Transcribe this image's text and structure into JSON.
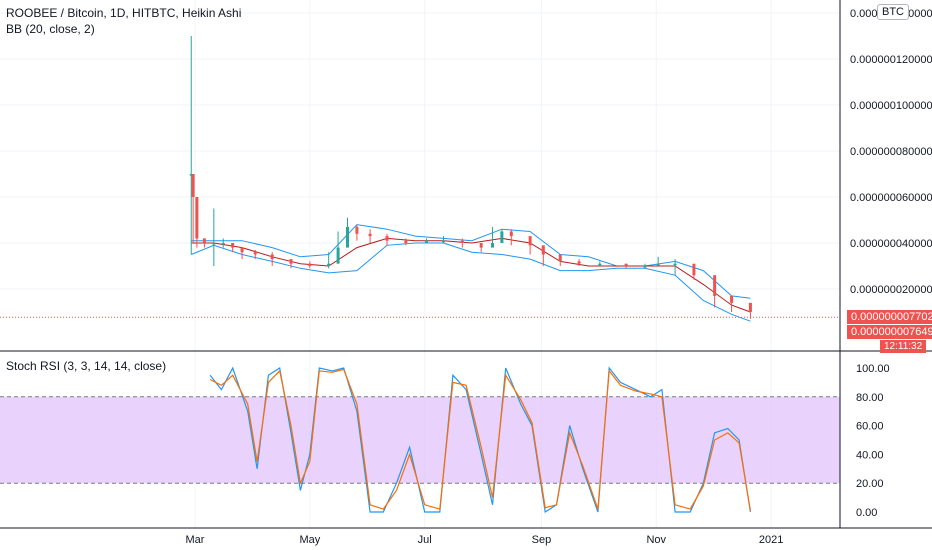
{
  "header": {
    "symbol_line": "ROOBEE / Bitcoin, 1D, HITBTC, Heikin Ashi",
    "bb_label": "BB (20, close, 2)",
    "currency_badge": "BTC",
    "stoch_label": "Stoch RSI (3, 3, 14, 14, close)"
  },
  "price_pills": {
    "last": "0.000000007702",
    "close": "0.000000007649",
    "countdown": "12:11:32"
  },
  "colors": {
    "up": "#26a69a",
    "down": "#ef5350",
    "bb_band": "#2196f3",
    "bb_basis": "#b71c1c",
    "k_line": "#2196f3",
    "d_line": "#ff6d00",
    "rsi_fill": "#e1c4fb"
  },
  "chart_data": [
    {
      "type": "candlestick",
      "title": "ROOBEE / Bitcoin, 1D, HITBTC, Heikin Ashi",
      "x_tick_labels": [
        "Mar",
        "May",
        "Jul",
        "Sep",
        "Nov",
        "2021"
      ],
      "y_tick_labels": [
        "0.000000020000",
        "0.000000040000",
        "0.000000060000",
        "0.000000080000",
        "0.000000100000",
        "0.000000120000",
        "0.000000140000"
      ],
      "ylim": [
        0.0,
        1.45e-07
      ],
      "last_price": 7.702e-09,
      "close_price": 7.649e-09,
      "series": [
        {
          "name": "BB (20, close, 2)",
          "x": [
            "Feb 27",
            "Mar 10",
            "Mar 25",
            "Apr 10",
            "Apr 25",
            "May 10",
            "May 25",
            "Jun 10",
            "Jun 25",
            "Jul 10",
            "Jul 25",
            "Aug 10",
            "Aug 25",
            "Sep 10",
            "Sep 25",
            "Oct 10",
            "Oct 25",
            "Nov 10",
            "Nov 25",
            "Dec 10",
            "Dec 20"
          ],
          "upper": [
            4.1e-08,
            4.1e-08,
            4.1e-08,
            3.8e-08,
            3.4e-08,
            3.5e-08,
            4.8e-08,
            4.6e-08,
            4.3e-08,
            4.2e-08,
            4.1e-08,
            4.6e-08,
            4.5e-08,
            3.5e-08,
            3.4e-08,
            3e-08,
            3e-08,
            3.2e-08,
            2.8e-08,
            1.7e-08,
            1.6e-08
          ],
          "basis": [
            4e-08,
            4e-08,
            3.8e-08,
            3.4e-08,
            3.1e-08,
            3e-08,
            3.8e-08,
            4.2e-08,
            4.1e-08,
            4.1e-08,
            4e-08,
            4.2e-08,
            4e-08,
            3.2e-08,
            3e-08,
            3e-08,
            3e-08,
            3e-08,
            2.2e-08,
            1.3e-08,
            1e-08
          ],
          "lower": [
            3.5e-08,
            3.9e-08,
            3.5e-08,
            3.2e-08,
            2.9e-08,
            2.7e-08,
            2.8e-08,
            3.9e-08,
            4e-08,
            4e-08,
            3.6e-08,
            3.5e-08,
            3.3e-08,
            2.8e-08,
            2.8e-08,
            2.9e-08,
            2.9e-08,
            2.6e-08,
            1.5e-08,
            9e-09,
            6e-09
          ]
        }
      ],
      "candles_sampled": {
        "x": [
          "Feb 27",
          "Feb 28",
          "Mar 1",
          "Mar 5",
          "Mar 10",
          "Mar 15",
          "Mar 20",
          "Mar 25",
          "Apr 1",
          "Apr 10",
          "Apr 20",
          "Apr 30",
          "May 10",
          "May 15",
          "May 20",
          "May 25",
          "Jun 1",
          "Jun 10",
          "Jun 20",
          "Jul 1",
          "Jul 10",
          "Jul 20",
          "Jul 30",
          "Aug 5",
          "Aug 10",
          "Aug 15",
          "Aug 25",
          "Sep 1",
          "Sep 10",
          "Sep 20",
          "Oct 1",
          "Oct 15",
          "Oct 25",
          "Nov 1",
          "Nov 10",
          "Nov 20",
          "Dec 1",
          "Dec 10",
          "Dec 20"
        ],
        "close": [
          7e-08,
          6e-08,
          4.2e-08,
          4e-08,
          4e-08,
          4e-08,
          3.8e-08,
          3.6e-08,
          3.5e-08,
          3.3e-08,
          3.1e-08,
          3e-08,
          3.1e-08,
          3.8e-08,
          4.7e-08,
          4.4e-08,
          4.3e-08,
          4.1e-08,
          4e-08,
          4.1e-08,
          4.1e-08,
          4e-08,
          3.8e-08,
          4e-08,
          4.5e-08,
          4.3e-08,
          3.9e-08,
          3.5e-08,
          3.2e-08,
          3.1e-08,
          3.1e-08,
          3e-08,
          3e-08,
          3.1e-08,
          3.1e-08,
          2.6e-08,
          1.7e-08,
          1.4e-08,
          1e-08
        ],
        "high": [
          1.3e-07,
          7e-08,
          4.6e-08,
          4.2e-08,
          5.5e-08,
          4.2e-08,
          4e-08,
          3.8e-08,
          3.7e-08,
          3.6e-08,
          3.3e-08,
          3.2e-08,
          3.6e-08,
          4.5e-08,
          5.1e-08,
          4.8e-08,
          4.6e-08,
          4.4e-08,
          4.2e-08,
          4.2e-08,
          4.3e-08,
          4.2e-08,
          4e-08,
          4.7e-08,
          4.6e-08,
          4.6e-08,
          4e-08,
          3.8e-08,
          3.4e-08,
          3.3e-08,
          3.2e-08,
          3.1e-08,
          3.1e-08,
          3.4e-08,
          3.3e-08,
          2.8e-08,
          2e-08,
          1.6e-08,
          1.2e-08
        ],
        "low": [
          3.5e-08,
          4e-08,
          3.8e-08,
          3.8e-08,
          3e-08,
          3.8e-08,
          3.6e-08,
          3.3e-08,
          3.3e-08,
          3e-08,
          2.9e-08,
          2.9e-08,
          2.9e-08,
          3.4e-08,
          4.2e-08,
          4.1e-08,
          4e-08,
          3.9e-08,
          3.9e-08,
          4e-08,
          4e-08,
          3.8e-08,
          3.6e-08,
          3.9e-08,
          4e-08,
          3.9e-08,
          3.5e-08,
          3e-08,
          3e-08,
          3e-08,
          3e-08,
          2.9e-08,
          2.9e-08,
          3e-08,
          2.6e-08,
          2.4e-08,
          1.2e-08,
          1e-08,
          7e-09
        ]
      }
    },
    {
      "type": "line",
      "title": "Stoch RSI (3, 3, 14, 14, close)",
      "y_tick_labels": [
        "0.00",
        "20.00",
        "40.00",
        "60.00",
        "80.00",
        "100.00"
      ],
      "ylim": [
        -8,
        108
      ],
      "band": [
        20,
        80
      ],
      "x": [
        "Mar 8",
        "Mar 14",
        "Mar 20",
        "Mar 28",
        "Apr 2",
        "Apr 8",
        "Apr 14",
        "Apr 20",
        "Apr 25",
        "Apr 30",
        "May 5",
        "May 12",
        "May 18",
        "May 25",
        "Jun 1",
        "Jun 8",
        "Jun 15",
        "Jun 22",
        "Jun 30",
        "Jul 8",
        "Jul 15",
        "Jul 22",
        "Jul 30",
        "Aug 5",
        "Aug 12",
        "Aug 20",
        "Aug 26",
        "Sep 2",
        "Sep 8",
        "Sep 15",
        "Sep 22",
        "Sep 30",
        "Oct 6",
        "Oct 12",
        "Oct 20",
        "Oct 28",
        "Nov 3",
        "Nov 10",
        "Nov 18",
        "Nov 25",
        "Dec 1",
        "Dec 8",
        "Dec 14",
        "Dec 20"
      ],
      "series": [
        {
          "name": "K",
          "values": [
            95,
            85,
            100,
            70,
            30,
            95,
            100,
            55,
            15,
            40,
            100,
            98,
            100,
            70,
            0,
            0,
            20,
            45,
            0,
            0,
            95,
            85,
            40,
            5,
            100,
            75,
            60,
            0,
            5,
            60,
            30,
            0,
            100,
            90,
            85,
            80,
            85,
            0,
            0,
            20,
            55,
            58,
            50,
            0
          ]
        },
        {
          "name": "D",
          "values": [
            92,
            88,
            95,
            75,
            35,
            90,
            98,
            60,
            20,
            35,
            98,
            97,
            99,
            75,
            5,
            2,
            15,
            40,
            5,
            2,
            90,
            88,
            45,
            10,
            95,
            78,
            62,
            3,
            5,
            55,
            32,
            2,
            98,
            88,
            84,
            82,
            80,
            5,
            2,
            18,
            50,
            55,
            48,
            1
          ]
        }
      ]
    }
  ]
}
